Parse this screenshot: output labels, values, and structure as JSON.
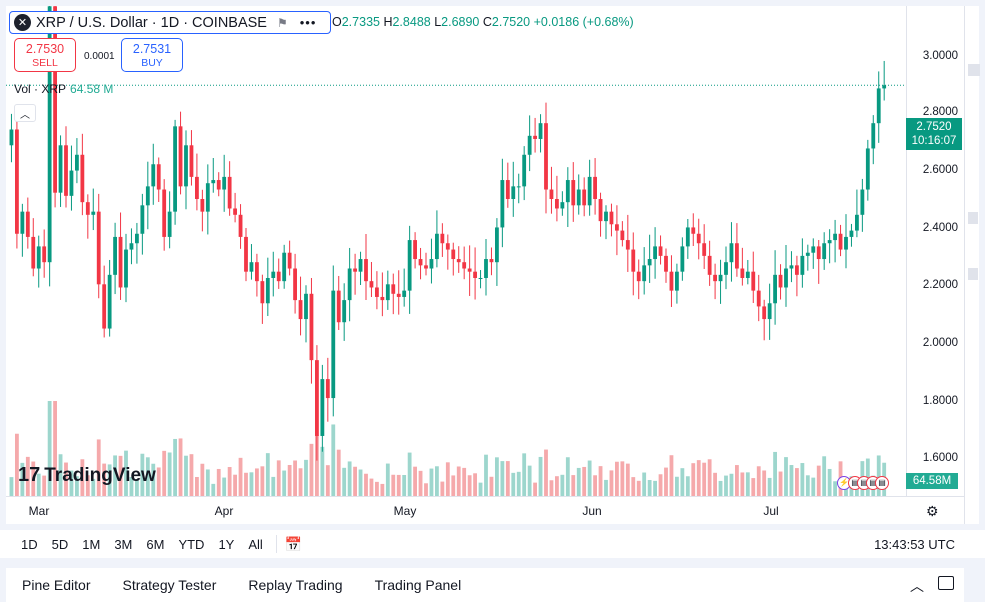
{
  "header": {
    "symbol_logo": "✕",
    "symbol_title": "XRP / U.S. Dollar · 1D · COINBASE",
    "flag_icon": "flag-icon",
    "more_icon": "more-icon"
  },
  "ohlc": {
    "o_label": "O",
    "o_value": "2.7335",
    "h_label": "H",
    "h_value": "2.8488",
    "l_label": "L",
    "l_value": "2.6890",
    "c_label": "C",
    "c_value": "2.7520",
    "change": "+0.0186 (+0.68%)"
  },
  "trade": {
    "sell_price": "2.7530",
    "sell_label": "SELL",
    "spread": "0.0001",
    "buy_price": "2.7531",
    "buy_label": "BUY"
  },
  "volume_legend": {
    "label": "Vol · XRP",
    "value": "64.58 M"
  },
  "price_axis": [
    "3.0000",
    "2.8000",
    "2.6000",
    "2.4000",
    "2.2000",
    "2.0000",
    "1.8000",
    "1.6000"
  ],
  "time_axis": [
    "Mar",
    "Apr",
    "May",
    "Jun",
    "Jul"
  ],
  "current_price": {
    "value": "2.7520",
    "countdown": "10:16:07"
  },
  "volume_axis_label": "64.58M",
  "logo": {
    "mark": "17",
    "text": "TradingView"
  },
  "ranges": [
    "1D",
    "5D",
    "1M",
    "3M",
    "6M",
    "YTD",
    "1Y",
    "All"
  ],
  "clock": "13:43:53 UTC",
  "bottom_panel": [
    "Pine Editor",
    "Strategy Tester",
    "Replay Trading",
    "Trading Panel"
  ],
  "colors": {
    "up": "#089981",
    "down": "#f23645",
    "vol_up": "#9dd6cd",
    "vol_down": "#f5a9ab",
    "accent": "#2962ff"
  },
  "chart_data": {
    "type": "candlestick",
    "symbol": "XRP / U.S. Dollar",
    "interval": "1D",
    "exchange": "COINBASE",
    "ylim": [
      1.45,
      3.08
    ],
    "closes": [
      2.61,
      2.28,
      2.35,
      2.27,
      2.17,
      2.24,
      2.19,
      3.0,
      2.41,
      2.56,
      2.4,
      2.48,
      2.53,
      2.38,
      2.34,
      2.35,
      2.12,
      1.98,
      2.15,
      2.27,
      2.11,
      2.23,
      2.25,
      2.28,
      2.37,
      2.43,
      2.5,
      2.42,
      2.27,
      2.35,
      2.62,
      2.43,
      2.56,
      2.46,
      2.39,
      2.35,
      2.44,
      2.45,
      2.42,
      2.46,
      2.36,
      2.34,
      2.27,
      2.16,
      2.19,
      2.13,
      2.06,
      2.14,
      2.16,
      2.13,
      2.22,
      2.17,
      2.07,
      2.01,
      2.09,
      1.88,
      1.64,
      1.82,
      1.76,
      2.1,
      2.0,
      2.07,
      2.17,
      2.16,
      2.2,
      2.13,
      2.11,
      2.08,
      2.07,
      2.12,
      2.09,
      2.08,
      2.1,
      2.26,
      2.2,
      2.18,
      2.17,
      2.2,
      2.28,
      2.25,
      2.23,
      2.2,
      2.19,
      2.17,
      2.16,
      2.14,
      2.14,
      2.2,
      2.19,
      2.3,
      2.45,
      2.39,
      2.43,
      2.43,
      2.53,
      2.59,
      2.58,
      2.63,
      2.42,
      2.39,
      2.36,
      2.38,
      2.45,
      2.37,
      2.42,
      2.37,
      2.46,
      2.39,
      2.32,
      2.35,
      2.31,
      2.29,
      2.26,
      2.23,
      2.16,
      2.13,
      2.18,
      2.2,
      2.24,
      2.21,
      2.16,
      2.1,
      2.16,
      2.24,
      2.3,
      2.28,
      2.25,
      2.21,
      2.15,
      2.13,
      2.15,
      2.19,
      2.25,
      2.17,
      2.14,
      2.16,
      2.1,
      2.05,
      2.01,
      2.06,
      2.15,
      2.11,
      2.17,
      2.18,
      2.15,
      2.21,
      2.22,
      2.24,
      2.2,
      2.25,
      2.26,
      2.28,
      2.23,
      2.27,
      2.29,
      2.34,
      2.42,
      2.55,
      2.63,
      2.74,
      2.75
    ]
  }
}
